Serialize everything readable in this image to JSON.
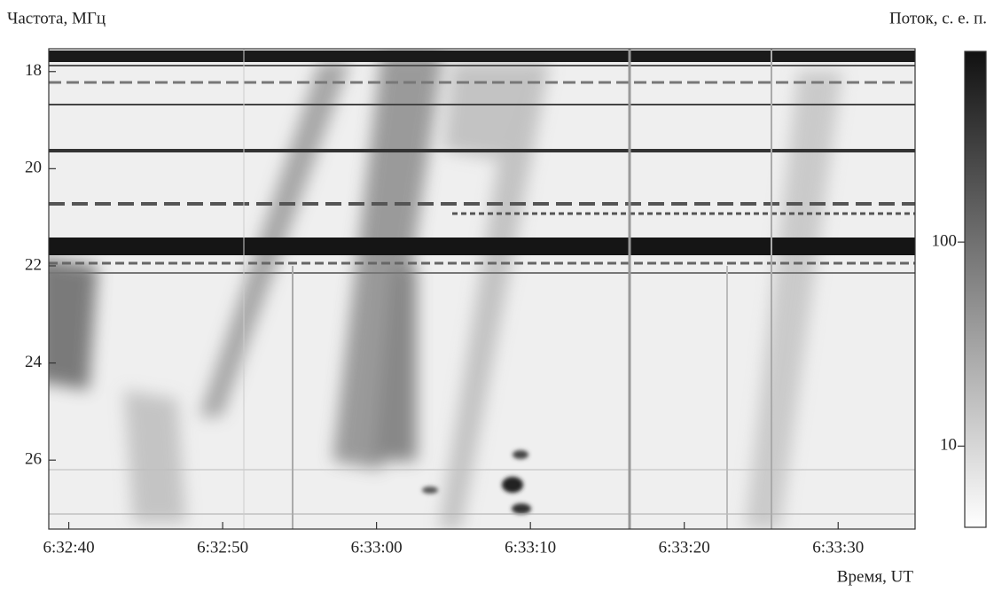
{
  "chart_data": {
    "type": "spectrogram",
    "y_label": "Частота, МГц",
    "colorbar_label": "Поток, с. е. п.",
    "x_label": "Время, UT",
    "xlim": [
      23558.7,
      23615.0
    ],
    "xticks": [
      {
        "value": 23560,
        "label": "6:32:40"
      },
      {
        "value": 23570,
        "label": "6:32:50"
      },
      {
        "value": 23580,
        "label": "6:33:00"
      },
      {
        "value": 23590,
        "label": "6:33:10"
      },
      {
        "value": 23600,
        "label": "6:33:20"
      },
      {
        "value": 23610,
        "label": "6:33:30"
      }
    ],
    "ylim": [
      27.42,
      17.53
    ],
    "yticks": [
      18,
      20,
      22,
      24,
      26
    ],
    "clim": [
      4,
      860
    ],
    "cticks": [
      10,
      100
    ],
    "color_log": true,
    "colormap": [
      "#ffffff",
      "#111111"
    ]
  }
}
